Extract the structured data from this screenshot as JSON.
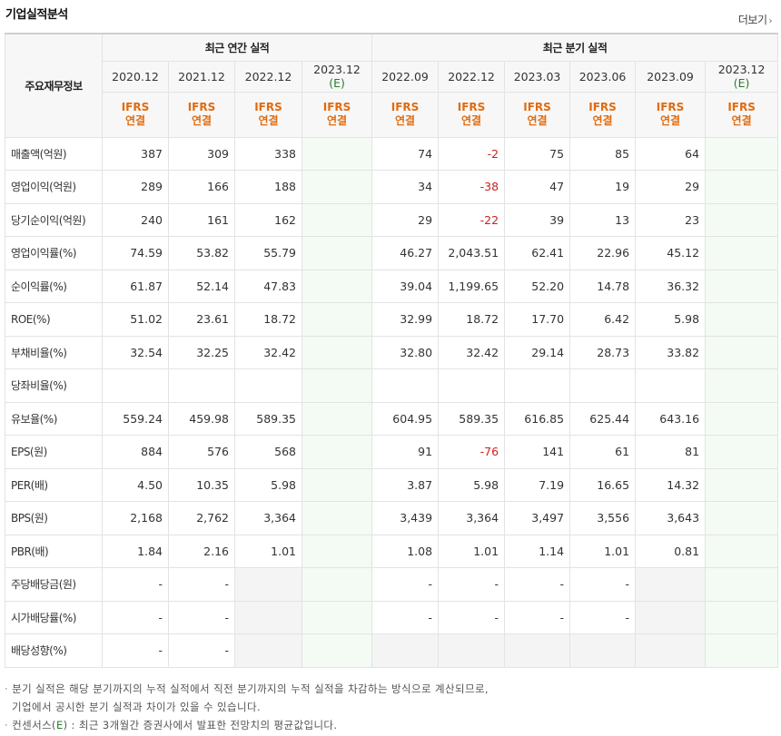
{
  "title": "기업실적분석",
  "more": "더보기",
  "more_icon": "chevron-right-icon",
  "table": {
    "row_header_label": "주요재무정보",
    "annual_group": "최근 연간 실적",
    "quarter_group": "최근 분기 실적",
    "annual_columns": [
      {
        "date": "2020.12",
        "est": "",
        "ifrs1": "IFRS",
        "ifrs2": "연결"
      },
      {
        "date": "2021.12",
        "est": "",
        "ifrs1": "IFRS",
        "ifrs2": "연결"
      },
      {
        "date": "2022.12",
        "est": "",
        "ifrs1": "IFRS",
        "ifrs2": "연결"
      },
      {
        "date": "2023.12",
        "est": "(E)",
        "ifrs1": "IFRS",
        "ifrs2": "연결"
      }
    ],
    "quarter_columns": [
      {
        "date": "2022.09",
        "est": "",
        "ifrs1": "IFRS",
        "ifrs2": "연결"
      },
      {
        "date": "2022.12",
        "est": "",
        "ifrs1": "IFRS",
        "ifrs2": "연결"
      },
      {
        "date": "2023.03",
        "est": "",
        "ifrs1": "IFRS",
        "ifrs2": "연결"
      },
      {
        "date": "2023.06",
        "est": "",
        "ifrs1": "IFRS",
        "ifrs2": "연결"
      },
      {
        "date": "2023.09",
        "est": "",
        "ifrs1": "IFRS",
        "ifrs2": "연결"
      },
      {
        "date": "2023.12",
        "est": "(E)",
        "ifrs1": "IFRS",
        "ifrs2": "연결"
      }
    ],
    "rows": [
      {
        "label": "매출액(억원)",
        "annual": [
          "387",
          "309",
          "338",
          ""
        ],
        "quarter": [
          "74",
          "-2",
          "75",
          "85",
          "64",
          ""
        ]
      },
      {
        "label": "영업이익(억원)",
        "annual": [
          "289",
          "166",
          "188",
          ""
        ],
        "quarter": [
          "34",
          "-38",
          "47",
          "19",
          "29",
          ""
        ]
      },
      {
        "label": "당기순이익(억원)",
        "annual": [
          "240",
          "161",
          "162",
          ""
        ],
        "quarter": [
          "29",
          "-22",
          "39",
          "13",
          "23",
          ""
        ]
      },
      {
        "label": "영업이익률(%)",
        "annual": [
          "74.59",
          "53.82",
          "55.79",
          ""
        ],
        "quarter": [
          "46.27",
          "2,043.51",
          "62.41",
          "22.96",
          "45.12",
          ""
        ]
      },
      {
        "label": "순이익률(%)",
        "annual": [
          "61.87",
          "52.14",
          "47.83",
          ""
        ],
        "quarter": [
          "39.04",
          "1,199.65",
          "52.20",
          "14.78",
          "36.32",
          ""
        ]
      },
      {
        "label": "ROE(%)",
        "annual": [
          "51.02",
          "23.61",
          "18.72",
          ""
        ],
        "quarter": [
          "32.99",
          "18.72",
          "17.70",
          "6.42",
          "5.98",
          ""
        ]
      },
      {
        "label": "부채비율(%)",
        "annual": [
          "32.54",
          "32.25",
          "32.42",
          ""
        ],
        "quarter": [
          "32.80",
          "32.42",
          "29.14",
          "28.73",
          "33.82",
          ""
        ]
      },
      {
        "label": "당좌비율(%)",
        "annual": [
          "",
          "",
          "",
          ""
        ],
        "quarter": [
          "",
          "",
          "",
          "",
          "",
          ""
        ]
      },
      {
        "label": "유보율(%)",
        "annual": [
          "559.24",
          "459.98",
          "589.35",
          ""
        ],
        "quarter": [
          "604.95",
          "589.35",
          "616.85",
          "625.44",
          "643.16",
          ""
        ]
      },
      {
        "label": "EPS(원)",
        "annual": [
          "884",
          "576",
          "568",
          ""
        ],
        "quarter": [
          "91",
          "-76",
          "141",
          "61",
          "81",
          ""
        ]
      },
      {
        "label": "PER(배)",
        "annual": [
          "4.50",
          "10.35",
          "5.98",
          ""
        ],
        "quarter": [
          "3.87",
          "5.98",
          "7.19",
          "16.65",
          "14.32",
          ""
        ]
      },
      {
        "label": "BPS(원)",
        "annual": [
          "2,168",
          "2,762",
          "3,364",
          ""
        ],
        "quarter": [
          "3,439",
          "3,364",
          "3,497",
          "3,556",
          "3,643",
          ""
        ]
      },
      {
        "label": "PBR(배)",
        "annual": [
          "1.84",
          "2.16",
          "1.01",
          ""
        ],
        "quarter": [
          "1.08",
          "1.01",
          "1.14",
          "1.01",
          "0.81",
          ""
        ]
      },
      {
        "label": "주당배당금(원)",
        "annual": [
          "-",
          "-",
          "",
          ""
        ],
        "quarter": [
          "-",
          "-",
          "-",
          "-",
          "",
          ""
        ]
      },
      {
        "label": "시가배당률(%)",
        "annual": [
          "-",
          "-",
          "",
          ""
        ],
        "quarter": [
          "-",
          "-",
          "-",
          "-",
          "",
          ""
        ]
      },
      {
        "label": "배당성향(%)",
        "annual": [
          "-",
          "-",
          "",
          ""
        ],
        "quarter": [
          "",
          "",
          "",
          "",
          "",
          ""
        ]
      }
    ]
  },
  "notes": {
    "line1": "분기 실적은 해당 분기까지의 누적 실적에서 직전 분기까지의 누적 실적을 차감하는 방식으로 계산되므로,",
    "line2": "기업에서 공시한 분기 실적과 차이가 있을 수 있습니다.",
    "line3_prefix": "컨센서스(",
    "line3_e": "E",
    "line3_suffix": ") : 최근 3개월간 증권사에서 발표한 전망치의 평균값입니다."
  }
}
